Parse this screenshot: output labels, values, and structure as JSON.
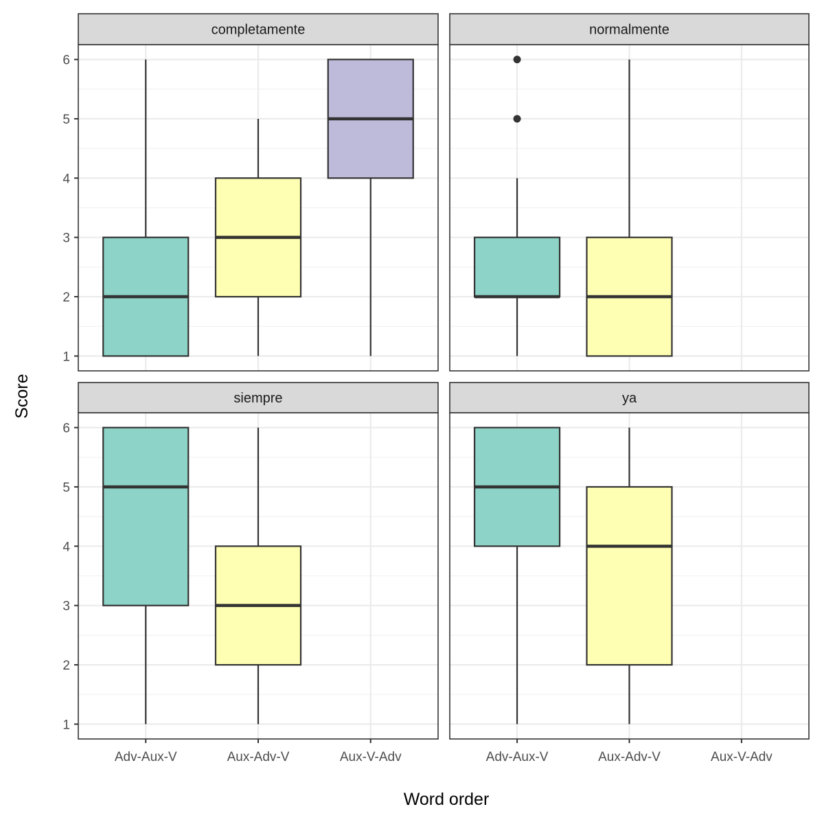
{
  "chart_data": {
    "type": "boxplot",
    "xlabel": "Word order",
    "ylabel": "Score",
    "ylim": [
      0.75,
      6.25
    ],
    "yticks": [
      1,
      2,
      3,
      4,
      5,
      6
    ],
    "grid": true,
    "categories": [
      "Adv-Aux-V",
      "Aux-Adv-V",
      "Aux-V-Adv"
    ],
    "category_colors": {
      "Adv-Aux-V": "#8dd3c7",
      "Aux-Adv-V": "#ffffb3",
      "Aux-V-Adv": "#bebada"
    },
    "facets": [
      {
        "title": "completamente",
        "boxes": [
          {
            "category": "Adv-Aux-V",
            "min": 1,
            "q1": 1,
            "median": 2,
            "q3": 3,
            "max": 6,
            "outliers": []
          },
          {
            "category": "Aux-Adv-V",
            "min": 1,
            "q1": 2,
            "median": 3,
            "q3": 4,
            "max": 5,
            "outliers": []
          },
          {
            "category": "Aux-V-Adv",
            "min": 1,
            "q1": 4,
            "median": 5,
            "q3": 6,
            "max": 6,
            "outliers": []
          }
        ]
      },
      {
        "title": "normalmente",
        "boxes": [
          {
            "category": "Adv-Aux-V",
            "min": 1,
            "q1": 2,
            "median": 2,
            "q3": 3,
            "max": 4,
            "outliers": [
              5,
              6
            ]
          },
          {
            "category": "Aux-Adv-V",
            "min": 1,
            "q1": 1,
            "median": 2,
            "q3": 3,
            "max": 6,
            "outliers": []
          }
        ]
      },
      {
        "title": "siempre",
        "boxes": [
          {
            "category": "Adv-Aux-V",
            "min": 1,
            "q1": 3,
            "median": 5,
            "q3": 6,
            "max": 6,
            "outliers": []
          },
          {
            "category": "Aux-Adv-V",
            "min": 1,
            "q1": 2,
            "median": 3,
            "q3": 4,
            "max": 6,
            "outliers": []
          }
        ]
      },
      {
        "title": "ya",
        "boxes": [
          {
            "category": "Adv-Aux-V",
            "min": 1,
            "q1": 4,
            "median": 5,
            "q3": 6,
            "max": 6,
            "outliers": []
          },
          {
            "category": "Aux-Adv-V",
            "min": 1,
            "q1": 2,
            "median": 4,
            "q3": 5,
            "max": 6,
            "outliers": []
          }
        ]
      }
    ]
  }
}
